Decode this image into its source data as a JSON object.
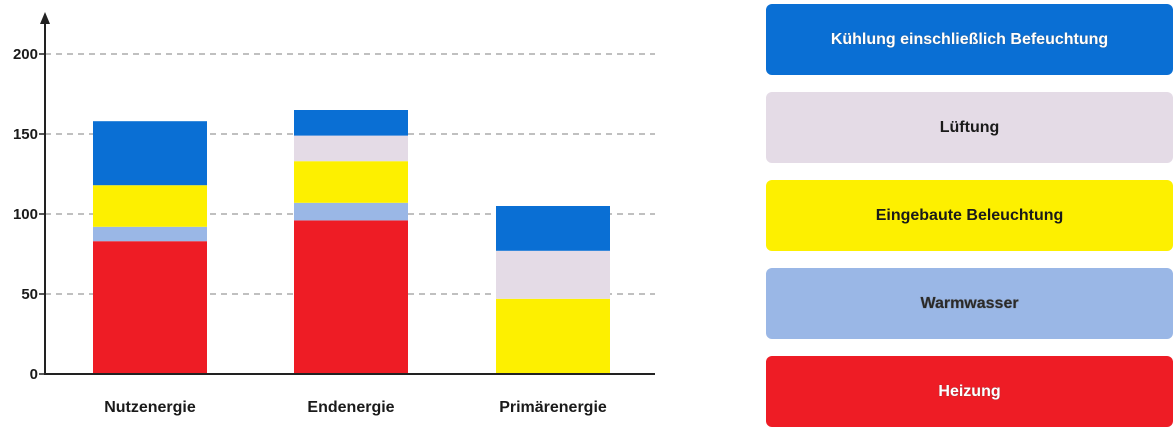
{
  "chart_data": {
    "type": "bar",
    "stacked": true,
    "categories": [
      "Nutzenergie",
      "Endenergie",
      "Primärenergie"
    ],
    "series": [
      {
        "name": "Heizung",
        "color": "#ee1c25",
        "values": [
          83,
          96,
          0
        ]
      },
      {
        "name": "Warmwasser",
        "color": "#9ab7e6",
        "values": [
          9,
          11,
          0
        ]
      },
      {
        "name": "Eingebaute Beleuchtung",
        "color": "#fdf000",
        "values": [
          26,
          26,
          47
        ]
      },
      {
        "name": "Lüftung",
        "color": "#e4dbe6",
        "values": [
          0,
          16,
          30
        ]
      },
      {
        "name": "Kühlung einschließlich Befeuchtung",
        "color": "#0a6fd4",
        "values": [
          40,
          16,
          28
        ]
      }
    ],
    "yticks": [
      0,
      50,
      100,
      150,
      200
    ],
    "ylim": [
      0,
      200
    ],
    "grid": true,
    "legend_placement": "right"
  },
  "legend": {
    "items": [
      {
        "label": "Kühlung einschließlich Befeuchtung",
        "color": "#0a6fd4"
      },
      {
        "label": "Lüftung",
        "color": "#e4dbe6"
      },
      {
        "label": "Eingebaute Beleuchtung",
        "color": "#fdf000"
      },
      {
        "label": "Warmwasser",
        "color": "#9ab7e6"
      },
      {
        "label": "Heizung",
        "color": "#ee1c25"
      }
    ]
  }
}
